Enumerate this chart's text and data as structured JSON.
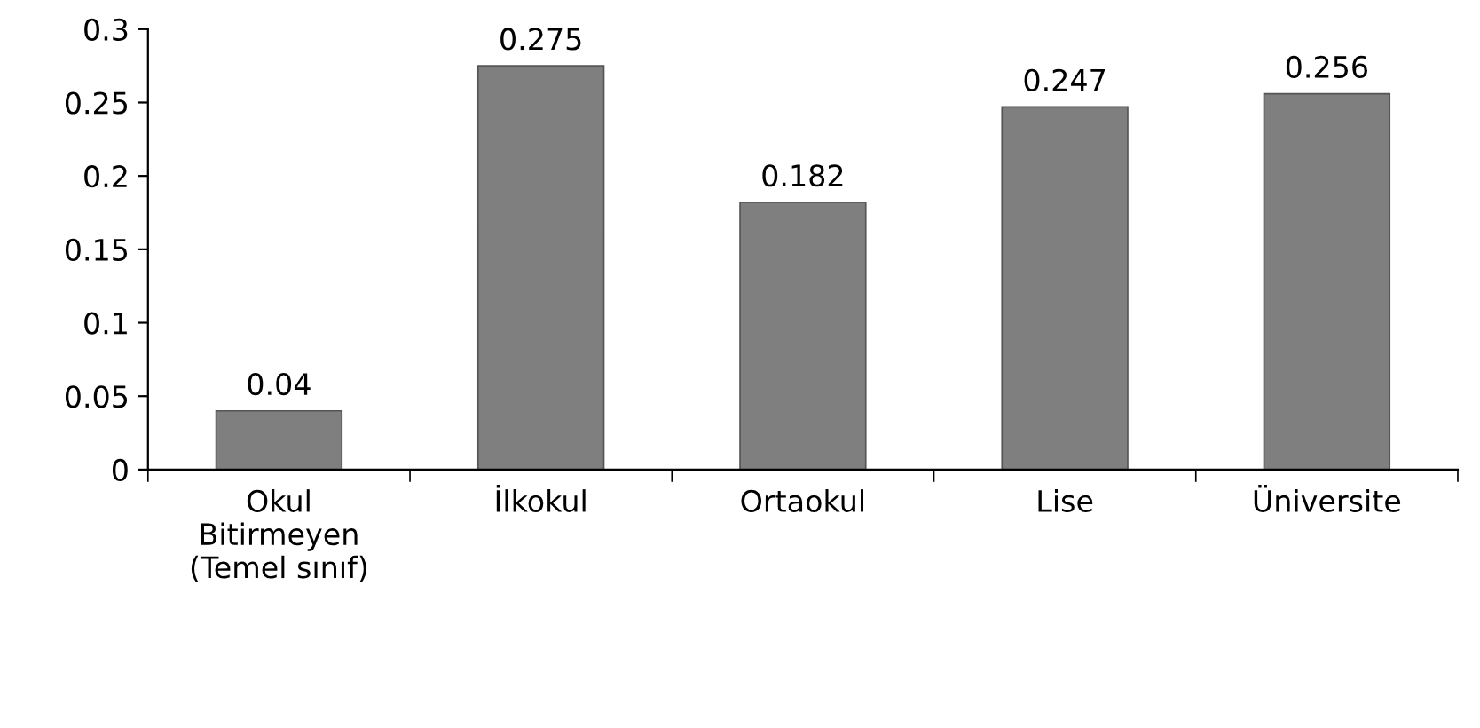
{
  "chart_data": {
    "type": "bar",
    "categories": [
      "Okul\nBitirmeyen\n(Temel sınıf)",
      "İlkokul",
      "Ortaokul",
      "Lise",
      "Üniversite"
    ],
    "values": [
      0.04,
      0.275,
      0.182,
      0.247,
      0.256
    ],
    "color": "#7f7f7f",
    "ylim": [
      0,
      0.3
    ],
    "yticks": [
      {
        "value": 0,
        "label": "0"
      },
      0.05,
      0.1,
      0.15,
      0.2,
      0.25,
      0.3
    ],
    "data_labels": true,
    "grid": false,
    "legend": false
  }
}
